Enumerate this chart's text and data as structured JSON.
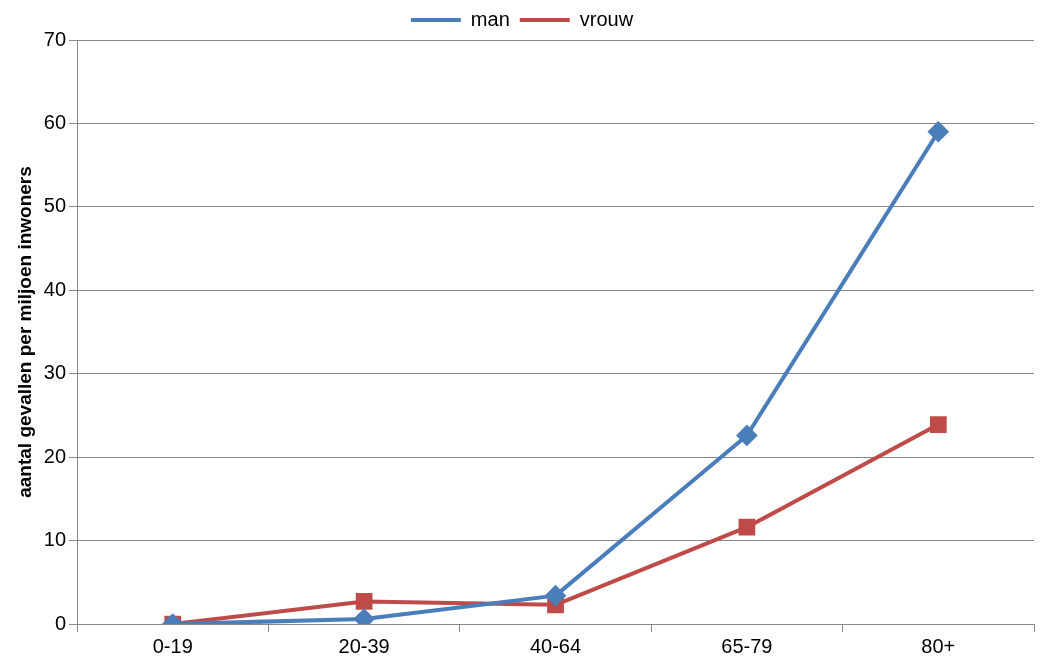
{
  "chart_data": {
    "type": "line",
    "ylabel": "aantal gevallen per miljoen inwoners",
    "categories": [
      "0-19",
      "20-39",
      "40-64",
      "65-79",
      "80+"
    ],
    "series": [
      {
        "name": "man",
        "color": "#4a7ebb",
        "marker": "diamond",
        "values": [
          0,
          0.6,
          3.4,
          22.6,
          59
        ]
      },
      {
        "name": "vrouw",
        "color": "#be4b48",
        "marker": "square",
        "values": [
          0,
          2.7,
          2.3,
          11.6,
          23.9
        ]
      }
    ],
    "ylim": [
      0,
      70
    ],
    "yticks": [
      0,
      10,
      20,
      30,
      40,
      50,
      60,
      70
    ],
    "grid": "y",
    "legend": "top",
    "line_style": "solid"
  }
}
